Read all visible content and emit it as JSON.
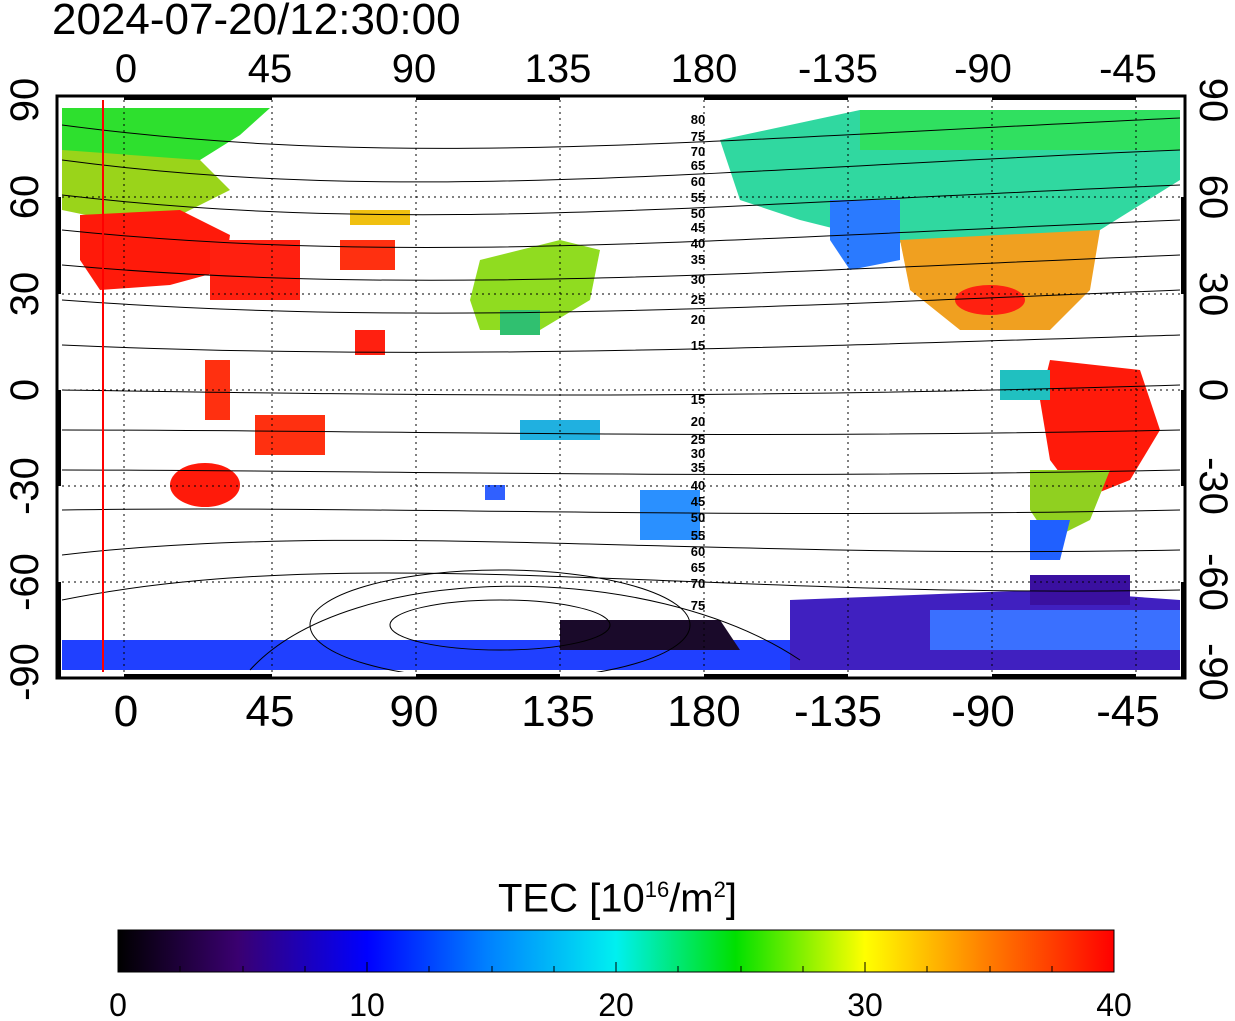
{
  "timestamp": "2024-07-20/12:30:00",
  "map": {
    "lon_labels": [
      "0",
      "45",
      "90",
      "135",
      "180",
      "-135",
      "-90",
      "-45"
    ],
    "lat_labels": [
      "90",
      "60",
      "30",
      "0",
      "-30",
      "-60",
      "-90"
    ],
    "contour_labels_north": [
      "80",
      "75",
      "70",
      "65",
      "60",
      "55",
      "50",
      "45",
      "40",
      "35",
      "30",
      "25",
      "20",
      "15"
    ],
    "contour_labels_south": [
      "15",
      "20",
      "25",
      "30",
      "35",
      "40",
      "45",
      "50",
      "55",
      "60",
      "65",
      "70",
      "75"
    ],
    "colors": {
      "tec_low": "#1a0a1a",
      "tec_mid": "#00e0ff",
      "tec_high": "#ff0000",
      "terminator": "#ff0000"
    }
  },
  "colorbar": {
    "title_prefix": "TEC  [10",
    "title_exp": "16",
    "title_mid": "/m",
    "title_exp2": "2",
    "title_suffix": "]",
    "ticks": [
      "0",
      "10",
      "20",
      "30",
      "40"
    ],
    "range": [
      0,
      40
    ]
  }
}
